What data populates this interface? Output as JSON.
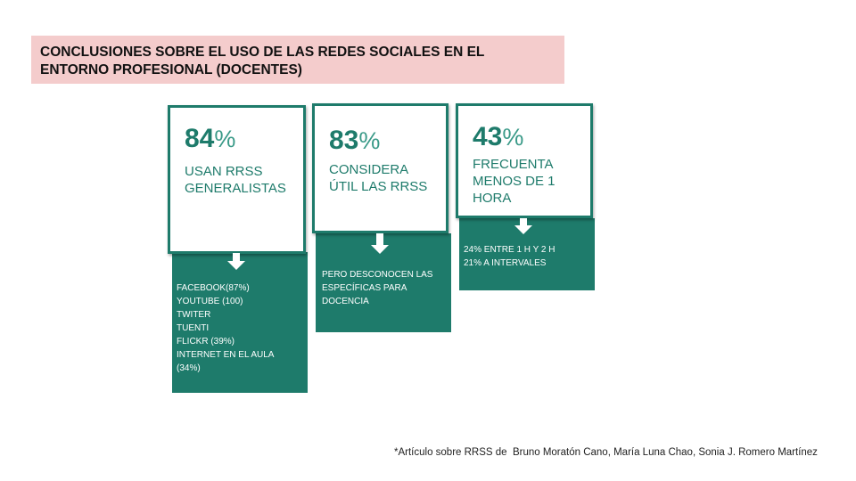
{
  "header": {
    "title": "CONCLUSIONES SOBRE EL USO DE LAS REDES SOCIALES EN EL ENTORNO PROFESIONAL (DOCENTES)"
  },
  "cards": [
    {
      "value": 84,
      "unit": "%",
      "label": "USAN RRSS GENERALISTAS",
      "details": [
        "FACEBOOK(87%)",
        "YOUTUBE (100)",
        "TWITER",
        "TUENTI",
        "FLICKR (39%)",
        "INTERNET EN EL AULA (34%)"
      ]
    },
    {
      "value": 83,
      "unit": "%",
      "label": "CONSIDERA ÚTIL LAS RRSS",
      "details": [
        "PERO DESCONOCEN LAS ESPECÍFICAS PARA DOCENCIA"
      ]
    },
    {
      "value": 43,
      "unit": "%",
      "label": "FRECUENTA MENOS DE 1 HORA",
      "details": [
        "24% ENTRE 1 H Y 2 H",
        "21% A INTERVALES"
      ]
    }
  ],
  "footnote": "*Artículo sobre RRSS de  Bruno Moratón Cano, María Luna Chao, Sonia J. Romero Martínez"
}
